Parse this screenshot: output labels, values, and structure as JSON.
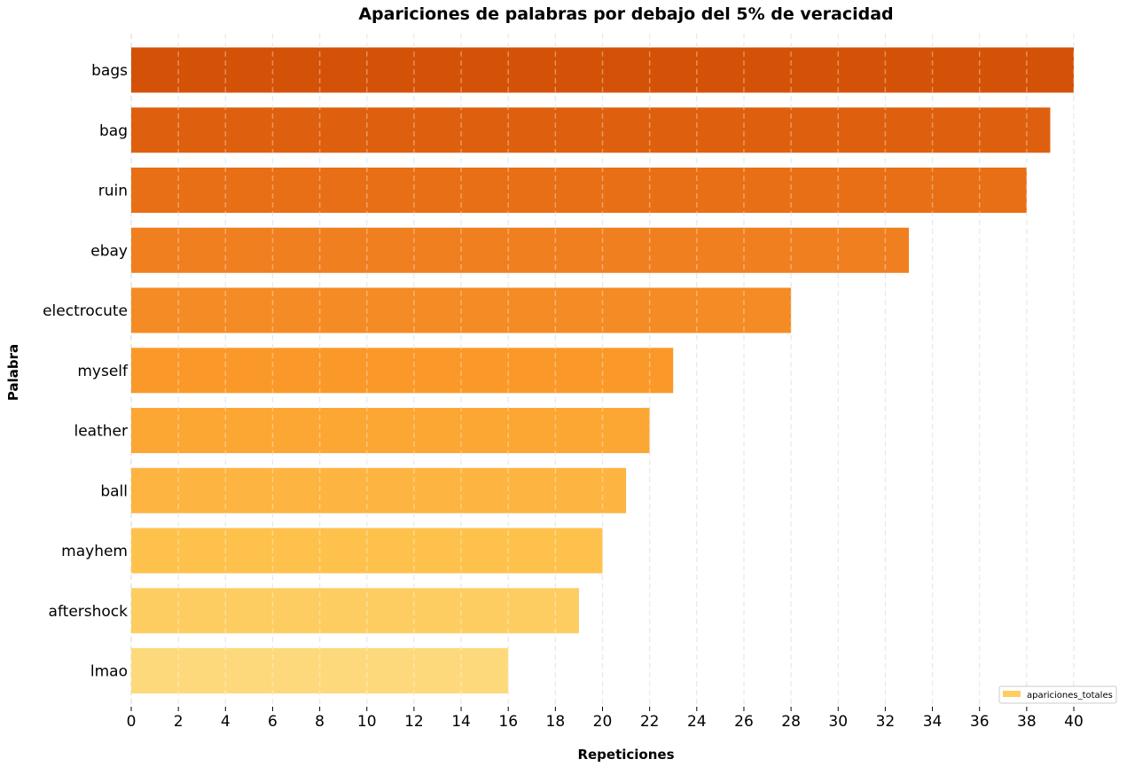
{
  "chart_data": {
    "type": "bar",
    "orientation": "horizontal",
    "title": "Apariciones de palabras por debajo del 5% de veracidad",
    "xlabel": "Repeticiones",
    "ylabel": "Palabra",
    "categories": [
      "bags",
      "bag",
      "ruin",
      "ebay",
      "electrocute",
      "myself",
      "leather",
      "ball",
      "mayhem",
      "aftershock",
      "lmao"
    ],
    "series": [
      {
        "name": "apariciones_totales",
        "values": [
          40,
          39,
          38,
          33,
          28,
          23,
          22,
          21,
          20,
          19,
          16
        ]
      }
    ],
    "bar_colors": [
      "#d35208",
      "#de600e",
      "#e86f16",
      "#f07f20",
      "#f58b24",
      "#fa992a",
      "#fca634",
      "#fdb440",
      "#fec24c",
      "#fecd62",
      "#fed97c"
    ],
    "xlim": [
      0,
      40
    ],
    "xticks": [
      "0",
      "2",
      "4",
      "6",
      "8",
      "10",
      "12",
      "14",
      "16",
      "18",
      "20",
      "22",
      "24",
      "26",
      "28",
      "30",
      "32",
      "34",
      "36",
      "38",
      "40"
    ],
    "grid": true,
    "legend_position": "bottom-right",
    "legend_color": "#fecd62"
  }
}
